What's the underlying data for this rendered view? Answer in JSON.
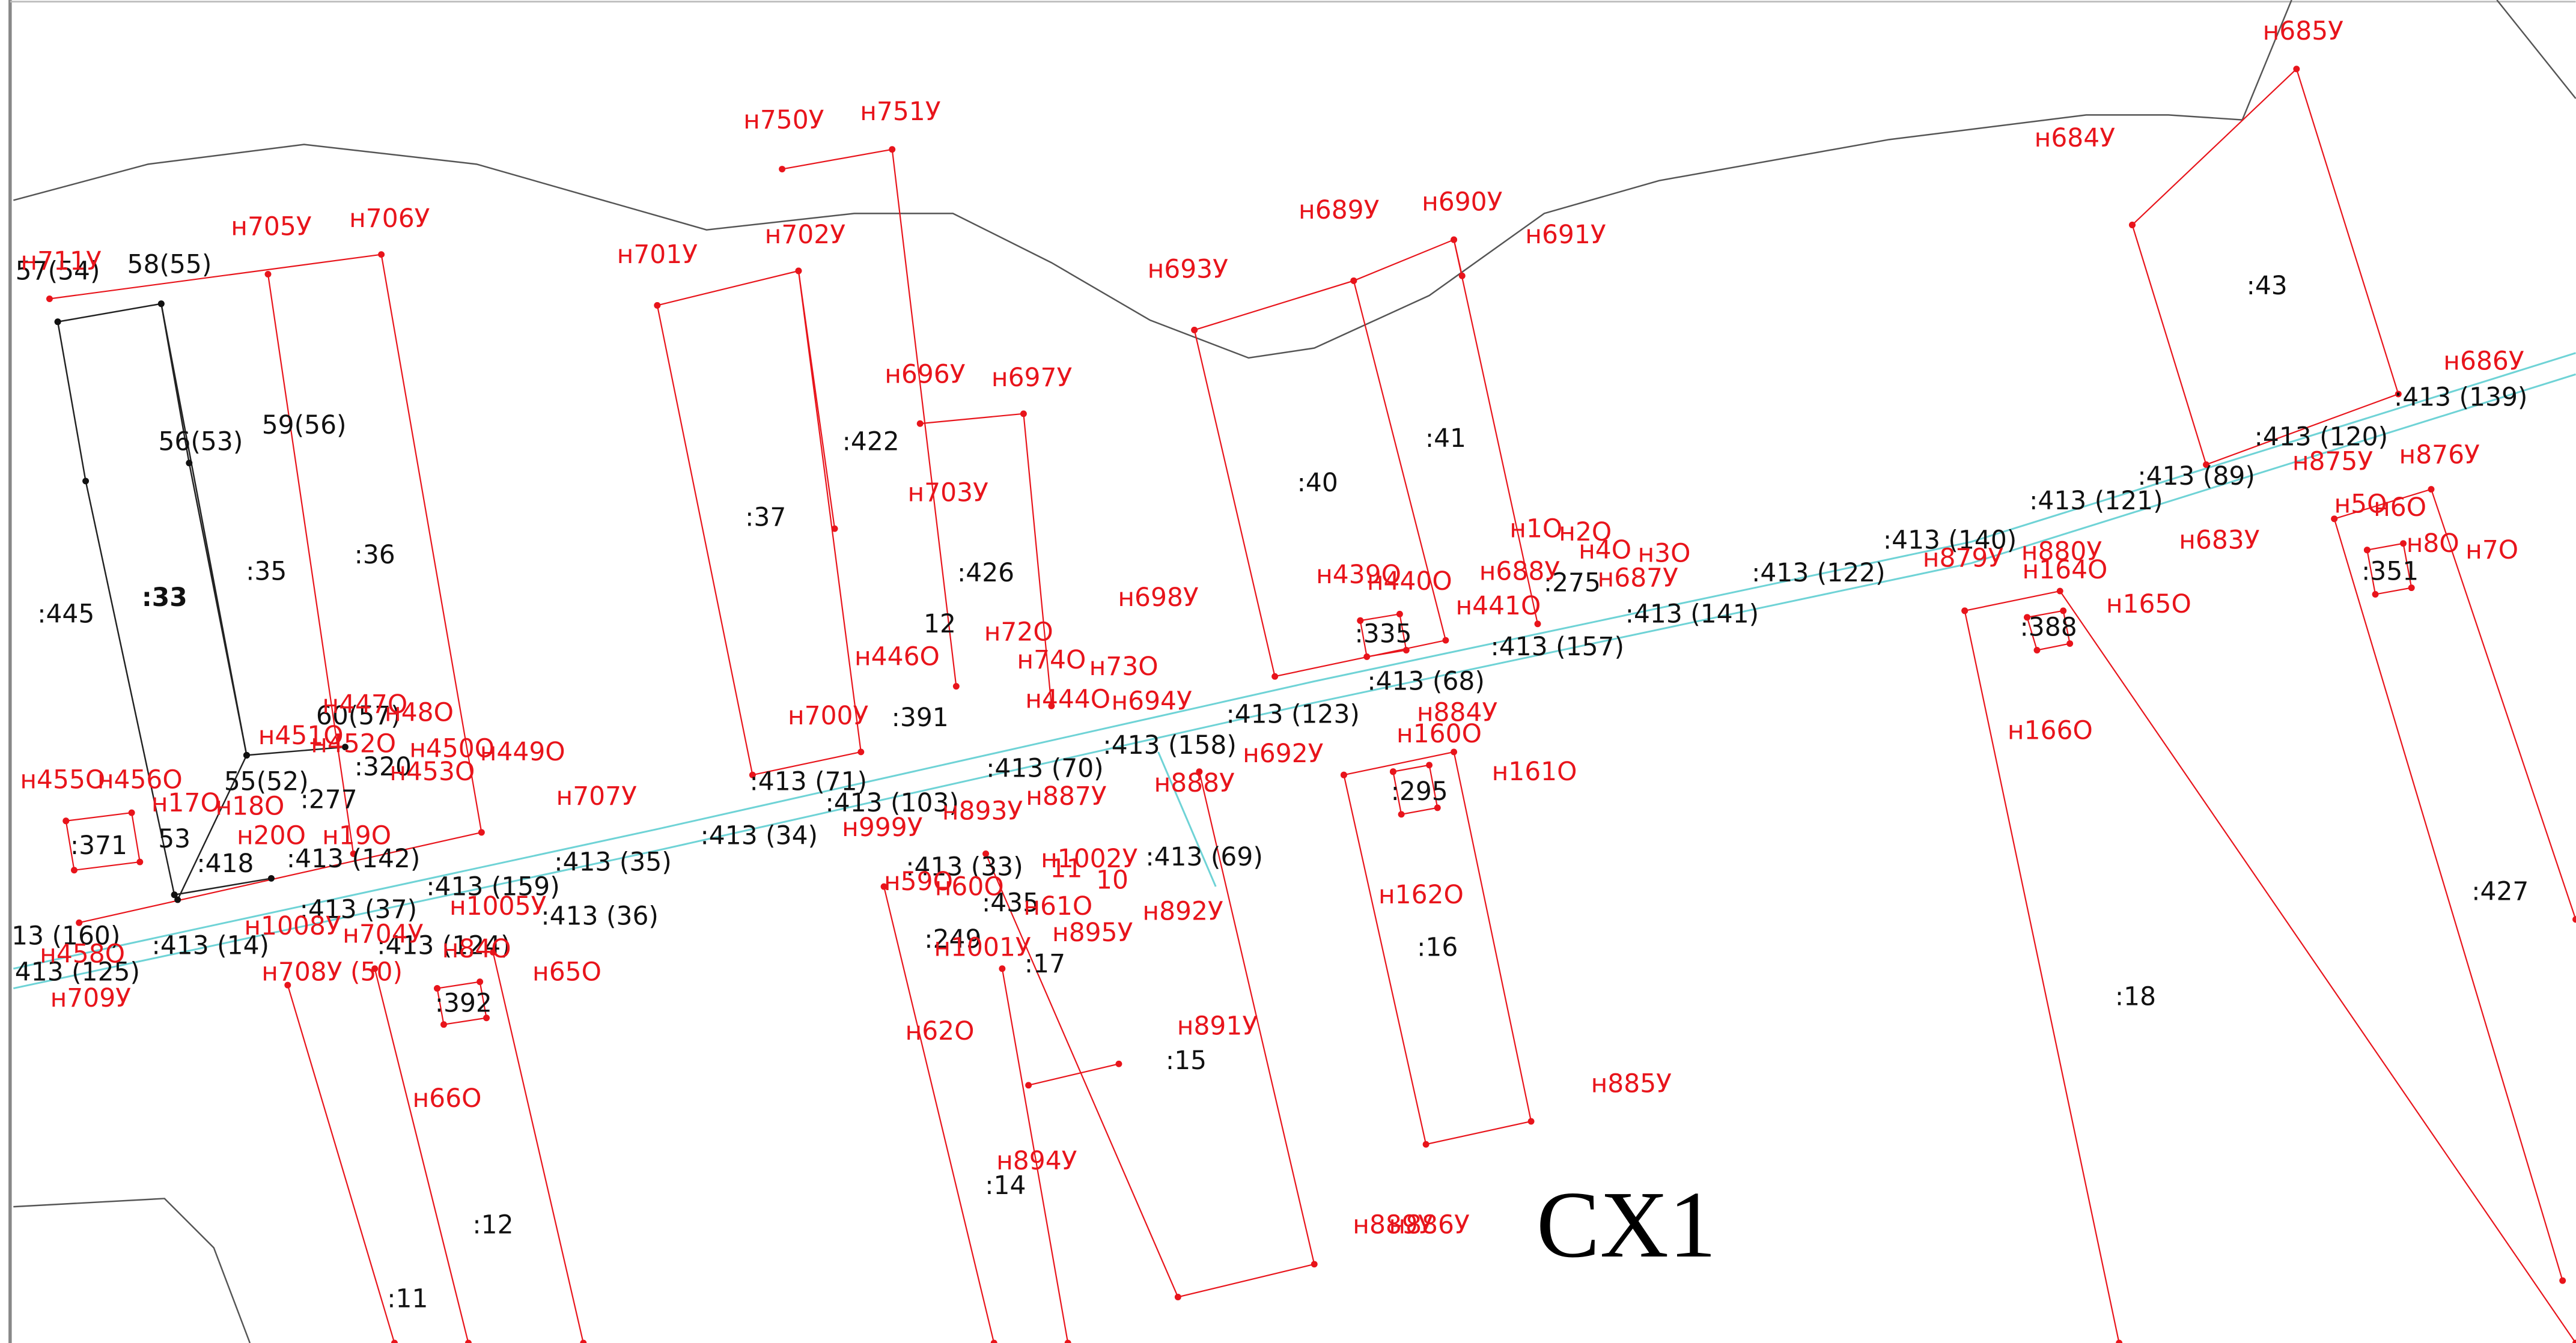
{
  "parcel_labels": [
    ":445",
    ":33",
    ":35",
    ":36",
    "57(54)",
    "58(55)",
    "56(53)",
    "59(56)",
    "60(57)",
    "55(52)",
    ":277",
    ":320",
    ":371",
    "53",
    ":418",
    ":413 (142)",
    ":413 (37)",
    ":413 (124)",
    ":413 (159)",
    ":413 (35)",
    ":413 (36)",
    ":413 (14)",
    "13 (160)",
    "413 (125)",
    ":392",
    ":12",
    ":11",
    ":37",
    ":422",
    ":426",
    "12",
    ":391",
    ":413 (71)",
    ":413 (34)",
    ":413 (103)",
    ":413 (70)",
    ":413 (158)",
    ":413 (33)",
    ":435",
    ":249",
    ":17",
    ":15",
    ":14",
    ":413 (69)",
    ":40",
    ":41",
    ":413 (123)",
    ":413 (68)",
    ":335",
    ":275",
    ":413 (157)",
    ":413 (141)",
    ":413 (122)",
    ":295",
    ":16",
    ":413 (140)",
    ":413 (121)",
    ":413 (89)",
    ":413 (120)",
    ":413 (139)",
    ":43",
    ":388",
    ":351",
    ":18",
    ":427"
  ],
  "point_labels": [
    "н711У",
    "н705У",
    "н706У",
    "н701У",
    "н702У",
    "н750У",
    "н751У",
    "н696У",
    "н697У",
    "н703У",
    "н693У",
    "н689У",
    "н690У",
    "н691У",
    "н685У",
    "н684У",
    "н686У",
    "н876У",
    "н875У",
    "н683У",
    "н5О",
    "н6О",
    "н8О",
    "н7О",
    "н165О",
    "н164О",
    "н166О",
    "н439О",
    "н440О",
    "н688У",
    "н687У",
    "н441О",
    "н1О",
    "н2О",
    "н4О",
    "н3О",
    "н698У",
    "н446О",
    "н700У",
    "н694У",
    "н73О",
    "н692У",
    "н884У",
    "н160О",
    "н161О",
    "н162О",
    "н885У",
    "н888У",
    "н887У",
    "н892У",
    "н891У",
    "н895У",
    "н894У",
    "н62О",
    "н1001У",
    "н1002У",
    "н999У",
    "н707У",
    "н449О",
    "н455О",
    "н456О",
    "н17О",
    "н18О",
    "н19О",
    "н20О",
    "н447О",
    "н48О",
    "н451О",
    "н452О",
    "н450О",
    "н453О",
    "н1005У",
    "н1008У",
    "н704У",
    "н84О",
    "н708У (50)",
    "н65О",
    "н66О",
    "н458О",
    "н709У",
    "н889У",
    "н886У",
    "н59О",
    "н60О",
    "н61О",
    "11",
    "10",
    "н72О",
    "н74О",
    "н444О",
    "н893У",
    "н879У",
    "н880У"
  ],
  "sheet_label": "CX1"
}
